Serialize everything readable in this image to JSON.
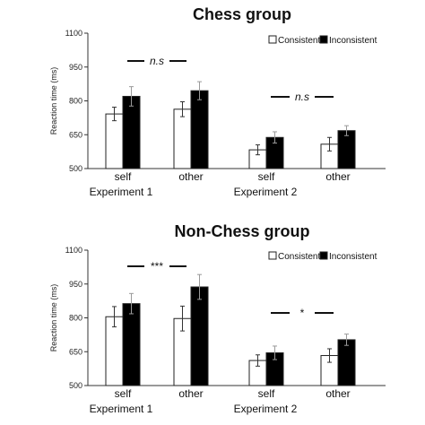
{
  "chart_data": [
    {
      "type": "bar",
      "title": "Chess group",
      "ylabel": "Reaction time (ms)",
      "ylim": [
        500,
        1100
      ],
      "yticks": [
        500,
        650,
        800,
        950,
        1100
      ],
      "categories": [
        "self",
        "other",
        "self",
        "other"
      ],
      "groups": [
        "Experiment 1",
        "Experiment 2"
      ],
      "series": [
        {
          "name": "Consistent",
          "color": "#ffffff",
          "values": [
            742,
            763,
            583,
            608
          ],
          "errors": [
            30,
            33,
            22,
            30
          ]
        },
        {
          "name": "Inconsistent",
          "color": "#000000",
          "values": [
            820,
            845,
            638,
            668
          ],
          "errors": [
            43,
            40,
            25,
            22
          ]
        }
      ],
      "significance": [
        {
          "label": "n.s",
          "italic": true,
          "from_category": 0,
          "to_category": 1
        },
        {
          "label": "n.s",
          "italic": true,
          "from_category": 2,
          "to_category": 3
        }
      ],
      "legend_position": "top-right",
      "grid": false
    },
    {
      "type": "bar",
      "title": "Non-Chess group",
      "ylabel": "Reaction time (ms)",
      "ylim": [
        500,
        1100
      ],
      "yticks": [
        500,
        650,
        800,
        950,
        1100
      ],
      "categories": [
        "self",
        "other",
        "self",
        "other"
      ],
      "groups": [
        "Experiment 1",
        "Experiment 2"
      ],
      "series": [
        {
          "name": "Consistent",
          "color": "#ffffff",
          "values": [
            805,
            797,
            611,
            633
          ],
          "errors": [
            45,
            55,
            25,
            30
          ]
        },
        {
          "name": "Inconsistent",
          "color": "#000000",
          "values": [
            863,
            937,
            645,
            703
          ],
          "errors": [
            45,
            55,
            30,
            25
          ]
        }
      ],
      "significance": [
        {
          "label": "***",
          "italic": false,
          "from_category": 0,
          "to_category": 1
        },
        {
          "label": "*",
          "italic": false,
          "from_category": 2,
          "to_category": 3
        }
      ],
      "legend_position": "top-right",
      "grid": false
    }
  ]
}
